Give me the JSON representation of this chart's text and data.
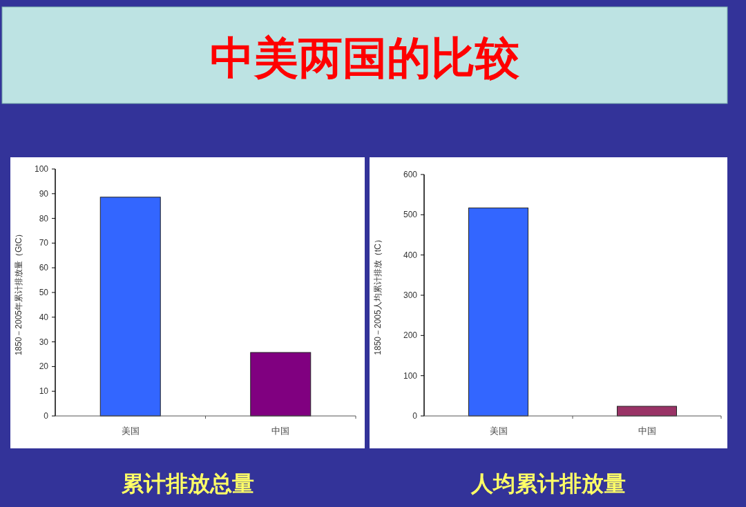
{
  "chart_data": [
    {
      "type": "bar",
      "title": "累计排放总量",
      "annotations": [
        "中美两国的比较"
      ],
      "ylabel": "1850－2005年累计排放量（GtC）",
      "categories": [
        "美国",
        "中国"
      ],
      "values": [
        88.6,
        25.7
      ],
      "colors": [
        "#3366ff",
        "#800080"
      ],
      "ylim": [
        0,
        100
      ],
      "yticks": [
        0,
        10,
        20,
        30,
        40,
        50,
        60,
        70,
        80,
        90,
        100
      ]
    },
    {
      "type": "bar",
      "title": "人均累计排放量",
      "ylabel": "1850－2005人均累计排放（tC）",
      "categories": [
        "美国",
        "中国"
      ],
      "values": [
        517,
        24
      ],
      "colors": [
        "#3366ff",
        "#993366"
      ],
      "ylim": [
        0,
        600
      ],
      "yticks": [
        0,
        100,
        200,
        300,
        400,
        500,
        600
      ]
    }
  ]
}
